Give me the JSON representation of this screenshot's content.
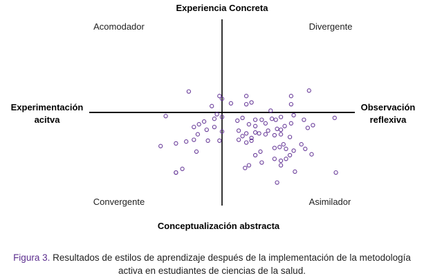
{
  "chart_data": {
    "type": "scatter",
    "axis_labels": {
      "top": "Experiencia Concreta",
      "bottom": "Conceptualización abstracta",
      "left": [
        "Experimentación",
        "acitva"
      ],
      "right": [
        "Observación",
        "reflexiva"
      ]
    },
    "quadrants": {
      "top_left": "Acomodador",
      "top_right": "Divergente",
      "bottom_left": "Convergente",
      "bottom_right": "Asimilador"
    },
    "xlim": [
      -10,
      10
    ],
    "ylim": [
      -10,
      10
    ],
    "marker_color": "#6a3d9a",
    "points": [
      [
        -2.6,
        2.3
      ],
      [
        -0.2,
        1.8
      ],
      [
        0.0,
        1.5
      ],
      [
        -0.8,
        0.7
      ],
      [
        0.7,
        1.0
      ],
      [
        1.9,
        1.8
      ],
      [
        2.3,
        1.1
      ],
      [
        1.9,
        0.9
      ],
      [
        5.4,
        1.8
      ],
      [
        6.8,
        2.4
      ],
      [
        5.4,
        0.9
      ],
      [
        3.8,
        0.2
      ],
      [
        4.6,
        -0.5
      ],
      [
        5.6,
        -0.3
      ],
      [
        6.4,
        -0.8
      ],
      [
        8.8,
        -0.6
      ],
      [
        -4.4,
        -0.4
      ],
      [
        -0.4,
        -0.2
      ],
      [
        0.0,
        -0.5
      ],
      [
        -0.6,
        -0.7
      ],
      [
        -1.4,
        -1.0
      ],
      [
        -1.8,
        -1.3
      ],
      [
        -2.2,
        -1.6
      ],
      [
        1.6,
        -0.6
      ],
      [
        1.2,
        -0.9
      ],
      [
        2.6,
        -0.8
      ],
      [
        3.1,
        -0.8
      ],
      [
        3.9,
        -0.7
      ],
      [
        4.2,
        -0.8
      ],
      [
        2.1,
        -1.3
      ],
      [
        2.6,
        -1.5
      ],
      [
        3.4,
        -1.2
      ],
      [
        4.9,
        -1.5
      ],
      [
        5.4,
        -1.2
      ],
      [
        7.1,
        -1.4
      ],
      [
        6.7,
        -1.7
      ],
      [
        0.0,
        -2.1
      ],
      [
        -0.6,
        -1.6
      ],
      [
        -1.2,
        -1.9
      ],
      [
        -1.9,
        -2.4
      ],
      [
        1.9,
        -2.3
      ],
      [
        2.6,
        -2.2
      ],
      [
        2.9,
        -2.3
      ],
      [
        3.6,
        -2.0
      ],
      [
        4.3,
        -1.8
      ],
      [
        4.6,
        -1.9
      ],
      [
        1.3,
        -2.0
      ],
      [
        1.6,
        -2.6
      ],
      [
        2.3,
        -2.8
      ],
      [
        3.4,
        -2.4
      ],
      [
        4.1,
        -2.5
      ],
      [
        4.6,
        -2.4
      ],
      [
        5.3,
        -2.7
      ],
      [
        1.3,
        -3.0
      ],
      [
        1.9,
        -3.3
      ],
      [
        2.3,
        -3.1
      ],
      [
        -0.2,
        -3.1
      ],
      [
        -1.1,
        -3.1
      ],
      [
        -2.2,
        -3.0
      ],
      [
        -2.8,
        -3.2
      ],
      [
        -3.6,
        -3.4
      ],
      [
        -4.8,
        -3.7
      ],
      [
        -2.0,
        -4.3
      ],
      [
        4.5,
        -3.8
      ],
      [
        4.1,
        -3.9
      ],
      [
        4.8,
        -3.5
      ],
      [
        5.0,
        -4.0
      ],
      [
        5.6,
        -4.2
      ],
      [
        6.5,
        -4.0
      ],
      [
        7.0,
        -4.6
      ],
      [
        3.0,
        -4.3
      ],
      [
        2.6,
        -4.7
      ],
      [
        4.1,
        -5.1
      ],
      [
        4.6,
        -5.3
      ],
      [
        5.0,
        -5.1
      ],
      [
        5.3,
        -4.7
      ],
      [
        6.2,
        -3.5
      ],
      [
        3.1,
        -5.5
      ],
      [
        4.6,
        -5.8
      ],
      [
        2.1,
        -5.8
      ],
      [
        1.8,
        -6.1
      ],
      [
        -3.1,
        -6.2
      ],
      [
        -3.6,
        -6.6
      ],
      [
        -3.6,
        -6.6
      ],
      [
        5.7,
        -6.5
      ],
      [
        8.9,
        -6.6
      ],
      [
        4.3,
        -7.7
      ]
    ]
  },
  "caption": {
    "label": "Figura 3.",
    "text": " Resultados de estilos de aprendizaje después de la implementación de la metodología activa en estudiantes de ciencias de la salud."
  }
}
